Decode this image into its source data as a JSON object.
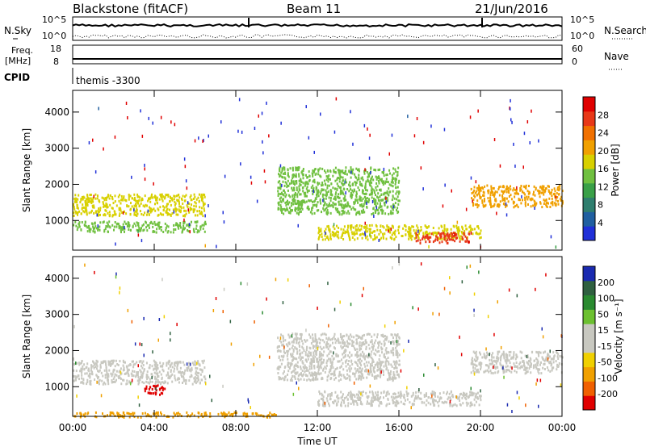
{
  "header": {
    "station": "Blackstone (fitACF)",
    "beam": "Beam 11",
    "date": "21/Jun/2016"
  },
  "status_panel": {
    "left_labels": {
      "nsky": "N.Sky",
      "freq": "Freq.",
      "mhz": "[MHz]",
      "cpid": "CPID"
    },
    "right_labels": {
      "nsearch": "N.Search",
      "nave": "Nave"
    },
    "noise_ticks_left": [
      "10^5",
      "10^0"
    ],
    "noise_ticks_right": [
      "10^5",
      "10^0"
    ],
    "freq_ticks": [
      "18",
      "8"
    ],
    "nave_ticks": [
      "60",
      "0"
    ],
    "cpid_text": "themis -3300"
  },
  "colorbars": {
    "power": {
      "title": "Power [dB]",
      "ticks": [
        "28",
        "24",
        "20",
        "16",
        "12",
        "8",
        "4"
      ],
      "colors": [
        "#2030d8",
        "#205fa0",
        "#2f7e6e",
        "#3aa048",
        "#70c040",
        "#d8d000",
        "#f0a000",
        "#f07000",
        "#e83818",
        "#e00000"
      ]
    },
    "velocity": {
      "title": "Velocity [m s⁻¹]",
      "ticks": [
        "200",
        "100",
        "50",
        "15",
        "-15",
        "-50",
        "-100",
        "-200"
      ],
      "colors": [
        "#1a2ab0",
        "#2f6040",
        "#2a8a30",
        "#6cc030",
        "#c8c8c0",
        "#c8c8c0",
        "#f0d000",
        "#f0a000",
        "#f06000",
        "#e00000"
      ]
    }
  },
  "chart_data": [
    {
      "type": "heatmap",
      "title": "Power",
      "ylabel": "Slant Range [km]",
      "xlabel": "",
      "xlim": [
        "00:00",
        "00:00"
      ],
      "ylim": [
        180,
        4600
      ],
      "y_ticks": [
        1000,
        2000,
        3000,
        4000
      ],
      "value_label": "Power [dB]",
      "bands": [
        {
          "t0": 0.0,
          "t1": 6.5,
          "r0": 1150,
          "r1": 1750,
          "value": 16
        },
        {
          "t0": 0.0,
          "t1": 6.5,
          "r0": 700,
          "r1": 1000,
          "value": 14
        },
        {
          "t0": 10.0,
          "t1": 16.0,
          "r0": 1200,
          "r1": 2500,
          "value": 14
        },
        {
          "t0": 12.0,
          "t1": 20.0,
          "r0": 500,
          "r1": 900,
          "value": 18
        },
        {
          "t0": 16.8,
          "t1": 19.5,
          "r0": 400,
          "r1": 700,
          "value": 28
        },
        {
          "t0": 19.5,
          "t1": 24.0,
          "r0": 1400,
          "r1": 2000,
          "value": 20
        }
      ]
    },
    {
      "type": "heatmap",
      "title": "Velocity",
      "ylabel": "Slant Range [km]",
      "xlabel": "Time UT",
      "x_ticks": [
        "00:00",
        "04:00",
        "08:00",
        "12:00",
        "16:00",
        "20:00",
        "00:00"
      ],
      "ylim": [
        180,
        4600
      ],
      "y_ticks": [
        1000,
        2000,
        3000,
        4000
      ],
      "value_label": "Velocity [m s⁻¹]",
      "bands": [
        {
          "t0": 0.0,
          "t1": 6.5,
          "r0": 1100,
          "r1": 1750,
          "value": 0
        },
        {
          "t0": 3.5,
          "t1": 4.5,
          "r0": 800,
          "r1": 1100,
          "value": -200
        },
        {
          "t0": 10.0,
          "t1": 16.0,
          "r0": 1200,
          "r1": 2500,
          "value": 0
        },
        {
          "t0": 12.0,
          "t1": 20.0,
          "r0": 500,
          "r1": 900,
          "value": 0
        },
        {
          "t0": 19.5,
          "t1": 24.0,
          "r0": 1400,
          "r1": 2000,
          "value": 0
        },
        {
          "t0": 0.0,
          "t1": 10.0,
          "r0": 180,
          "r1": 320,
          "value": -50
        }
      ]
    }
  ]
}
